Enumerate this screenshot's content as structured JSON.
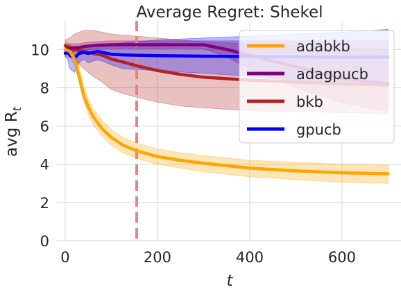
{
  "chart_data": {
    "type": "line",
    "title": "Average Regret: Shekel",
    "xlabel": "t",
    "ylabel": "avg R",
    "ylabel_subscript": "t",
    "xlim": [
      -18,
      728
    ],
    "ylim": [
      0,
      11.5
    ],
    "xticks": [
      0,
      200,
      400,
      600
    ],
    "yticks": [
      0,
      2,
      4,
      6,
      8,
      10
    ],
    "grid": true,
    "legend_position": "top-right",
    "vline": {
      "x": 155,
      "color": "#f08080",
      "style": "dashed"
    },
    "series": [
      {
        "name": "adabkb",
        "color": "#ffa500",
        "x": [
          0,
          10,
          20,
          30,
          40,
          50,
          60,
          80,
          100,
          125,
          155,
          200,
          250,
          300,
          400,
          500,
          600,
          700
        ],
        "y": [
          10.0,
          9.9,
          9.5,
          8.6,
          7.6,
          7.0,
          6.5,
          5.85,
          5.4,
          5.0,
          4.7,
          4.4,
          4.2,
          4.05,
          3.8,
          3.65,
          3.55,
          3.5
        ],
        "lower": [
          9.6,
          9.6,
          9.2,
          8.3,
          7.3,
          6.6,
          6.1,
          5.45,
          5.0,
          4.6,
          4.3,
          4.0,
          3.8,
          3.6,
          3.35,
          3.2,
          3.05,
          3.0
        ],
        "upper": [
          10.4,
          10.3,
          9.9,
          9.1,
          8.1,
          7.4,
          6.9,
          6.3,
          5.8,
          5.4,
          5.1,
          4.8,
          4.6,
          4.45,
          4.2,
          4.1,
          4.0,
          3.95
        ]
      },
      {
        "name": "adagpucb",
        "color": "#800080",
        "x": [
          0,
          10,
          20,
          30,
          40,
          60,
          100,
          155,
          200,
          250,
          300,
          350,
          400,
          500,
          600,
          700
        ],
        "y": [
          10.0,
          10.05,
          10.1,
          10.1,
          10.15,
          10.2,
          10.25,
          10.25,
          10.25,
          10.25,
          10.25,
          10.0,
          9.7,
          9.1,
          8.5,
          8.2
        ],
        "lower": [
          9.7,
          9.8,
          9.9,
          9.9,
          9.95,
          10.0,
          10.05,
          10.05,
          10.05,
          10.05,
          10.05,
          9.6,
          9.0,
          8.0,
          7.2,
          6.8
        ],
        "upper": [
          10.3,
          10.3,
          10.3,
          10.3,
          10.35,
          10.4,
          10.45,
          10.45,
          10.45,
          10.45,
          10.45,
          10.45,
          10.45,
          10.45,
          10.45,
          10.45
        ]
      },
      {
        "name": "bkb",
        "color": "#b22222",
        "x": [
          0,
          10,
          20,
          40,
          60,
          80,
          100,
          125,
          155,
          200,
          250,
          300,
          400,
          500,
          600,
          700
        ],
        "y": [
          10.2,
          10.1,
          10.0,
          9.9,
          9.8,
          9.7,
          9.5,
          9.35,
          9.15,
          8.9,
          8.7,
          8.55,
          8.4,
          8.3,
          8.2,
          8.15
        ],
        "lower": [
          9.8,
          9.7,
          9.5,
          9.0,
          8.6,
          8.3,
          7.9,
          7.7,
          7.5,
          7.25,
          7.05,
          6.95,
          6.8,
          6.75,
          6.7,
          6.65
        ],
        "upper": [
          10.5,
          10.6,
          10.8,
          11.0,
          11.0,
          10.9,
          10.8,
          10.75,
          10.7,
          10.6,
          10.5,
          10.4,
          10.3,
          10.2,
          10.1,
          10.0
        ]
      },
      {
        "name": "gpucb",
        "color": "#0000ff",
        "x": [
          0,
          5,
          10,
          20,
          30,
          40,
          50,
          60,
          70,
          80,
          100,
          125,
          155,
          200,
          300,
          400,
          500,
          600,
          700
        ],
        "y": [
          9.8,
          9.9,
          9.7,
          9.55,
          9.8,
          9.85,
          9.8,
          9.85,
          9.9,
          9.85,
          9.75,
          9.72,
          9.7,
          9.68,
          9.65,
          9.63,
          9.62,
          9.6,
          9.6
        ],
        "lower": [
          9.6,
          9.5,
          9.0,
          8.8,
          9.3,
          9.5,
          9.3,
          9.4,
          9.45,
          9.4,
          9.2,
          9.0,
          8.95,
          8.9,
          8.75,
          8.6,
          8.4,
          8.3,
          8.2
        ],
        "upper": [
          10.1,
          10.2,
          10.2,
          10.1,
          10.1,
          10.2,
          10.2,
          10.25,
          10.3,
          10.3,
          10.3,
          10.35,
          10.4,
          10.5,
          10.6,
          10.7,
          10.8,
          10.9,
          11.05
        ]
      }
    ]
  }
}
